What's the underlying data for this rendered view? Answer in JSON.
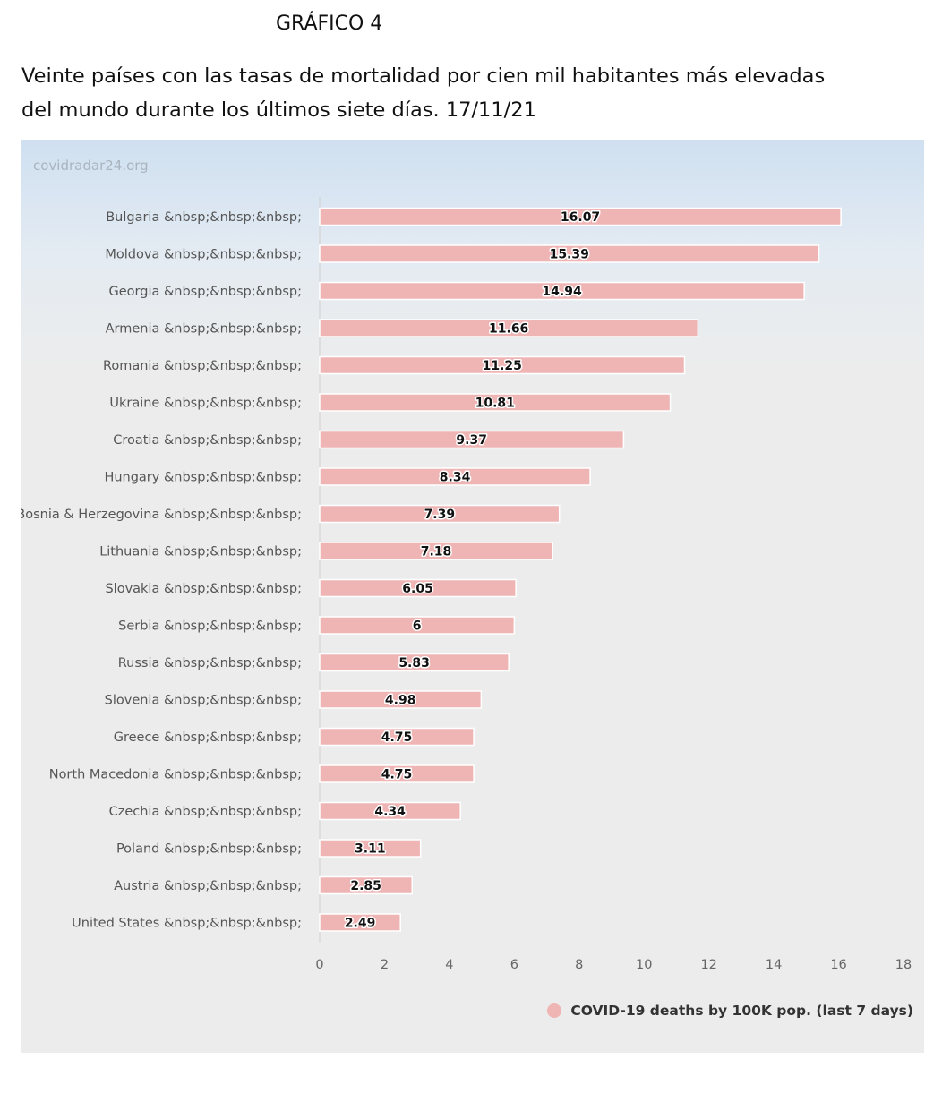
{
  "heading": "GRÁFICO 4",
  "subtitle_lines": [
    "Veinte países con las tasas de mortalidad por cien mil habitantes más elevadas",
    "del mundo durante los últimos siete días. 17/11/21"
  ],
  "watermark": "covidradar24.org",
  "colors": {
    "bar": "#efb5b5",
    "bar_border": "#ffffff",
    "panel_top": "#cfe0f1",
    "panel": "#ececec"
  },
  "chart_data": {
    "type": "bar",
    "orientation": "horizontal",
    "categories": [
      "Bulgaria &nbsp;&nbsp;&nbsp;",
      "Moldova &nbsp;&nbsp;&nbsp;",
      "Georgia &nbsp;&nbsp;&nbsp;",
      "Armenia &nbsp;&nbsp;&nbsp;",
      "Romania &nbsp;&nbsp;&nbsp;",
      "Ukraine &nbsp;&nbsp;&nbsp;",
      "Croatia &nbsp;&nbsp;&nbsp;",
      "Hungary &nbsp;&nbsp;&nbsp;",
      "Bosnia & Herzegovina &nbsp;&nbsp;&nbsp;",
      "Lithuania &nbsp;&nbsp;&nbsp;",
      "Slovakia &nbsp;&nbsp;&nbsp;",
      "Serbia &nbsp;&nbsp;&nbsp;",
      "Russia &nbsp;&nbsp;&nbsp;",
      "Slovenia &nbsp;&nbsp;&nbsp;",
      "Greece &nbsp;&nbsp;&nbsp;",
      "North Macedonia &nbsp;&nbsp;&nbsp;",
      "Czechia &nbsp;&nbsp;&nbsp;",
      "Poland &nbsp;&nbsp;&nbsp;",
      "Austria &nbsp;&nbsp;&nbsp;",
      "United States &nbsp;&nbsp;&nbsp;"
    ],
    "series": [
      {
        "name": "COVID-19 deaths by 100K pop. (last 7 days)",
        "values": [
          16.07,
          15.39,
          14.94,
          11.66,
          11.25,
          10.81,
          9.37,
          8.34,
          7.39,
          7.18,
          6.05,
          6,
          5.83,
          4.98,
          4.75,
          4.75,
          4.34,
          3.11,
          2.85,
          2.49
        ],
        "data_labels": [
          "16.07",
          "15.39",
          "14.94",
          "11.66",
          "11.25",
          "10.81",
          "9.37",
          "8.34",
          "7.39",
          "7.18",
          "6.05",
          "6",
          "5.83",
          "4.98",
          "4.75",
          "4.75",
          "4.34",
          "3.11",
          "2.85",
          "2.49"
        ]
      }
    ],
    "x_ticks": [
      0,
      2,
      4,
      6,
      8,
      10,
      12,
      14,
      16,
      18
    ],
    "xlim": [
      0,
      18
    ],
    "grid": false,
    "legend_position": "bottom-right"
  }
}
